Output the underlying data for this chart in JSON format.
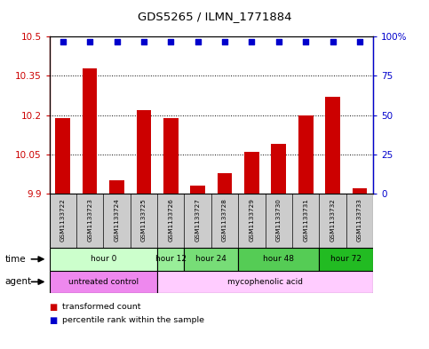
{
  "title": "GDS5265 / ILMN_1771884",
  "samples": [
    "GSM1133722",
    "GSM1133723",
    "GSM1133724",
    "GSM1133725",
    "GSM1133726",
    "GSM1133727",
    "GSM1133728",
    "GSM1133729",
    "GSM1133730",
    "GSM1133731",
    "GSM1133732",
    "GSM1133733"
  ],
  "transformed_counts": [
    10.19,
    10.38,
    9.95,
    10.22,
    10.19,
    9.93,
    9.98,
    10.06,
    10.09,
    10.2,
    10.27,
    9.92
  ],
  "percentile_ranks": [
    97,
    97,
    97,
    97,
    97,
    97,
    97,
    97,
    97,
    97,
    97,
    97
  ],
  "ymin": 9.9,
  "ymax": 10.5,
  "yticks": [
    9.9,
    10.05,
    10.2,
    10.35,
    10.5
  ],
  "ytick_labels": [
    "9.9",
    "10.05",
    "10.2",
    "10.35",
    "10.5"
  ],
  "y2min": 0,
  "y2max": 100,
  "y2ticks": [
    0,
    25,
    50,
    75,
    100
  ],
  "y2tick_labels": [
    "0",
    "25",
    "50",
    "75",
    "100%"
  ],
  "bar_color": "#cc0000",
  "dot_color": "#0000cc",
  "bar_baseline": 9.9,
  "time_groups": [
    {
      "label": "hour 0",
      "start": 0,
      "end": 3,
      "color": "#ccffcc"
    },
    {
      "label": "hour 12",
      "start": 4,
      "end": 4,
      "color": "#99ee99"
    },
    {
      "label": "hour 24",
      "start": 5,
      "end": 6,
      "color": "#77dd77"
    },
    {
      "label": "hour 48",
      "start": 7,
      "end": 9,
      "color": "#55cc55"
    },
    {
      "label": "hour 72",
      "start": 10,
      "end": 11,
      "color": "#22bb22"
    }
  ],
  "agent_groups": [
    {
      "label": "untreated control",
      "start": 0,
      "end": 3,
      "color": "#ee88ee"
    },
    {
      "label": "mycophenolic acid",
      "start": 4,
      "end": 11,
      "color": "#ffccff"
    }
  ],
  "sample_bg_color": "#cccccc",
  "legend_items": [
    {
      "label": "transformed count",
      "color": "#cc0000"
    },
    {
      "label": "percentile rank within the sample",
      "color": "#0000cc"
    }
  ]
}
